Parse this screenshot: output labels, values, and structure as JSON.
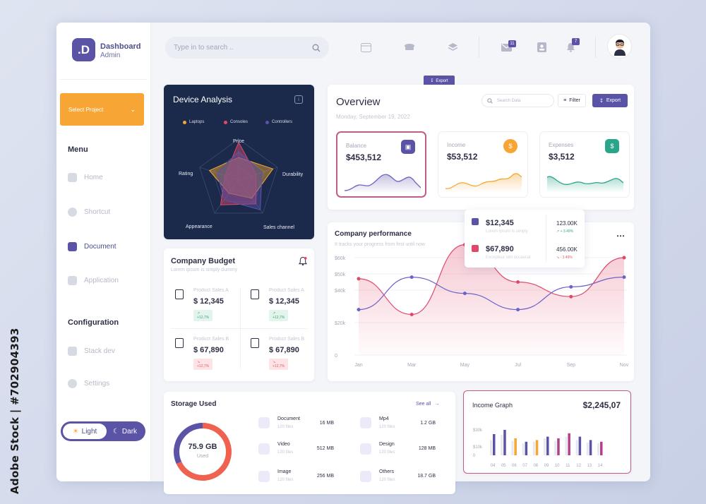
{
  "watermark": "Adobe Stock | #702904393",
  "brand": {
    "logo": ".D",
    "title": "Dashboard",
    "subtitle": "Admin"
  },
  "sidebar": {
    "select_project": "Select Project",
    "menu_heading": "Menu",
    "menu": [
      {
        "label": "Home",
        "icon": "home-icon"
      },
      {
        "label": "Shortcut",
        "icon": "shortcut-icon"
      },
      {
        "label": "Document",
        "icon": "document-icon",
        "active": true
      },
      {
        "label": "Application",
        "icon": "grid-icon"
      }
    ],
    "config_heading": "Configuration",
    "config": [
      {
        "label": "Stack dev",
        "icon": "stack-icon"
      },
      {
        "label": "Settings",
        "icon": "gear-icon"
      }
    ],
    "theme": {
      "light": "Light",
      "dark": "Dark",
      "selected": "Light"
    }
  },
  "topbar": {
    "search_placeholder": "Type in to search ..",
    "mail_badge": "11",
    "notification_badge": "7"
  },
  "device_analysis": {
    "title": "Device Analysis",
    "legend": [
      {
        "name": "Laptops",
        "color": "#f7a635"
      },
      {
        "name": "Consoles",
        "color": "#e0496b"
      },
      {
        "name": "Controllers",
        "color": "#5b53a6"
      }
    ],
    "axes": [
      "Price",
      "Durability",
      "Sales channel",
      "Appearance",
      "Rating"
    ]
  },
  "export_float": "Export",
  "overview": {
    "title": "Overview",
    "date": "Monday, September 19, 2022",
    "search_placeholder": "Search Data",
    "filter": "Filter",
    "export": "Export",
    "stats": [
      {
        "label": "Balance",
        "value": "$453,512",
        "color": "#5b53a6"
      },
      {
        "label": "Income",
        "value": "$53,512",
        "color": "#f7a635"
      },
      {
        "label": "Expenses",
        "value": "$3,512",
        "color": "#2aa58a"
      }
    ]
  },
  "company_budget": {
    "title": "Company Budget",
    "subtitle": "Lorem ipsum is simply dummy",
    "items": [
      {
        "label": "Product Sales A",
        "value": "$ 12,345",
        "change": "+12,7%",
        "trend": "up"
      },
      {
        "label": "Product Sales A",
        "value": "$ 12,345",
        "change": "+12,7%",
        "trend": "up"
      },
      {
        "label": "Product Sales B",
        "value": "$ 67,890",
        "change": "+12,7%",
        "trend": "down"
      },
      {
        "label": "Product Sales B",
        "value": "$ 67,890",
        "change": "+12,7%",
        "trend": "down"
      }
    ]
  },
  "popup": {
    "rows": [
      {
        "value": "$12,345",
        "desc": "Lorem Ipsum is simply",
        "right_value": "123.00K",
        "change": "+ 3.49%",
        "trend": "up"
      },
      {
        "value": "$67,890",
        "desc": "Excepteur sint occaecat",
        "right_value": "456.00K",
        "change": "- 3.49%",
        "trend": "down"
      }
    ]
  },
  "company_performance": {
    "title": "Company performance",
    "subtitle": "It tracks your progress from first until now"
  },
  "storage": {
    "title": "Storage Used",
    "see_all": "See all",
    "used_value": "75.9 GB",
    "used_label": "Used",
    "items": [
      {
        "name": "Document",
        "files": "120 files",
        "size": "16 MB",
        "icon": "document-icon"
      },
      {
        "name": "Mp4",
        "files": "120 files",
        "size": "1.2 GB",
        "icon": "music-icon"
      },
      {
        "name": "Video",
        "files": "120 files",
        "size": "512 MB",
        "icon": "video-icon"
      },
      {
        "name": "Design",
        "files": "120 files",
        "size": "128 MB",
        "icon": "design-icon"
      },
      {
        "name": "Image",
        "files": "120 files",
        "size": "256 MB",
        "icon": "image-icon"
      },
      {
        "name": "Others",
        "files": "120 files",
        "size": "18.7 GB",
        "icon": "others-icon"
      }
    ]
  },
  "income_graph": {
    "title": "Income Graph",
    "total": "$2,245,07"
  },
  "chart_data": [
    {
      "type": "line",
      "name": "company-performance",
      "x": [
        "Jan",
        "Mar",
        "May",
        "Jul",
        "Sep",
        "Nov"
      ],
      "y_ticks": [
        "0",
        "$20k",
        "$40k",
        "$50k",
        "$60k"
      ],
      "ylim": [
        0,
        60
      ],
      "series": [
        {
          "color": "#e0496b",
          "values": [
            47,
            25,
            68,
            45,
            36,
            60
          ],
          "fill": true
        },
        {
          "color": "#6c63c9",
          "values": [
            28,
            48,
            38,
            28,
            42,
            48
          ]
        }
      ]
    },
    {
      "type": "bar",
      "name": "income-graph",
      "categories": [
        "04",
        "05",
        "06",
        "07",
        "08",
        "09",
        "10",
        "11",
        "12",
        "13",
        "14"
      ],
      "y_ticks": [
        "$30k",
        "$10k",
        "0"
      ],
      "ylim": [
        0,
        40
      ],
      "series": [
        {
          "values": [
            25,
            30,
            20,
            16,
            18,
            22,
            20,
            26,
            22,
            18,
            16
          ],
          "colors": [
            "#5b53a6",
            "#5b53a6",
            "#f7a635",
            "#5b53a6",
            "#f7a635",
            "#5b53a6",
            "#b2418a",
            "#b2418a",
            "#5b53a6",
            "#5b53a6",
            "#b2418a"
          ]
        },
        {
          "values": [
            18,
            24,
            17,
            14,
            16,
            20,
            17,
            22,
            18,
            15,
            14
          ],
          "colors": [
            "#e6e8f0",
            "#e6e8f0",
            "#e6e8f0",
            "#e6e8f0",
            "#e6e8f0",
            "#e6e8f0",
            "#e6e8f0",
            "#e6e8f0",
            "#e6e8f0",
            "#e6e8f0",
            "#e6e8f0"
          ]
        }
      ]
    },
    {
      "type": "radar",
      "name": "device-analysis",
      "axes": [
        "Price",
        "Durability",
        "Sales channel",
        "Appearance",
        "Rating"
      ],
      "series": [
        {
          "name": "Laptops",
          "color": "#f7a635",
          "values": [
            0.55,
            0.88,
            0.55,
            0.4,
            0.75
          ]
        },
        {
          "name": "Consoles",
          "color": "#e0496b",
          "values": [
            0.92,
            0.45,
            0.72,
            0.75,
            0.35
          ]
        },
        {
          "name": "Controllers",
          "color": "#5b53a6",
          "values": [
            0.7,
            0.6,
            0.9,
            0.6,
            0.55
          ]
        }
      ]
    },
    {
      "type": "pie",
      "name": "storage-used",
      "values": [
        68,
        32
      ],
      "colors": [
        "#f0614f",
        "#5b53a6"
      ]
    }
  ]
}
